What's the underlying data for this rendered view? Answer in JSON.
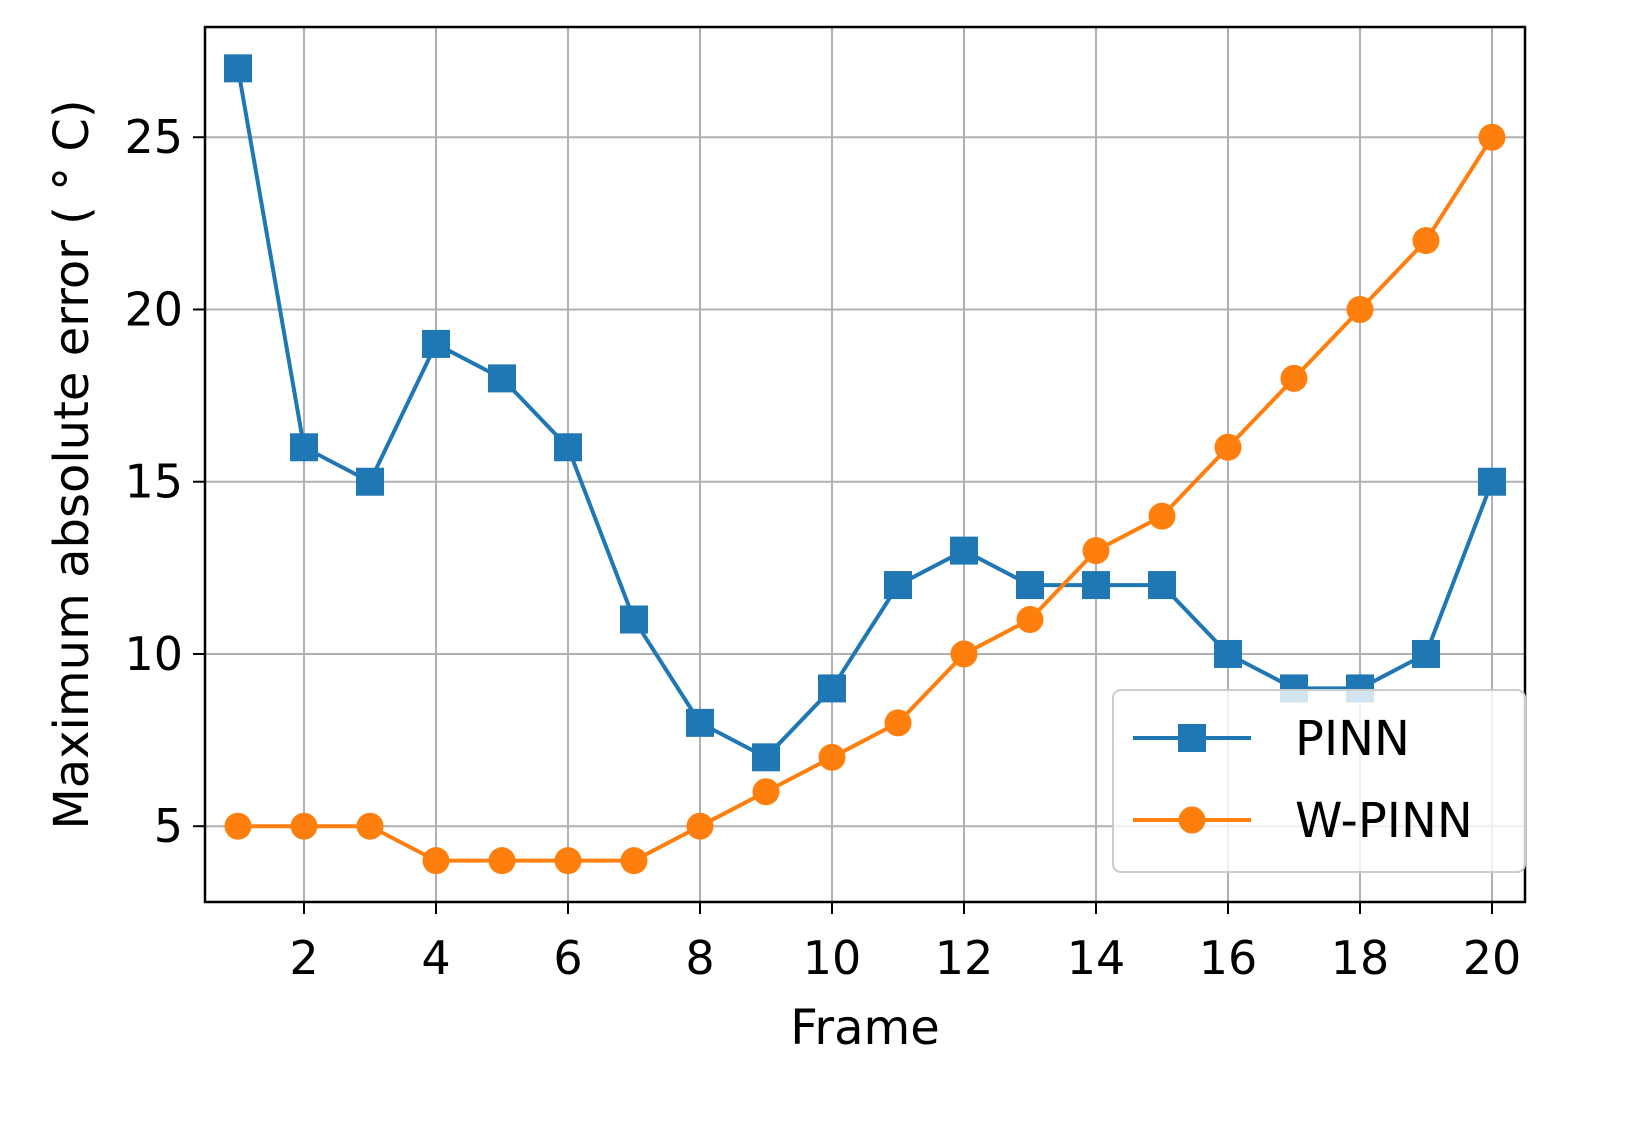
{
  "chart_data": {
    "type": "line",
    "xlabel": "Frame",
    "ylabel": "Maximum absolute error ($^\\circ$C)",
    "ylabel_display": "Maximum absolute error ( ° C)",
    "x": [
      1,
      2,
      3,
      4,
      5,
      6,
      7,
      8,
      9,
      10,
      11,
      12,
      13,
      14,
      15,
      16,
      17,
      18,
      19,
      20
    ],
    "xlim": [
      0.5,
      20.5
    ],
    "ylim": [
      2.8,
      28.2
    ],
    "xticks": [
      2,
      4,
      6,
      8,
      10,
      12,
      14,
      16,
      18,
      20
    ],
    "yticks": [
      5,
      10,
      15,
      20,
      25
    ],
    "grid": true,
    "legend_position": "lower-right",
    "series": [
      {
        "name": "PINN",
        "marker": "square",
        "color": "#1f77b4",
        "values": [
          27,
          16,
          15,
          19,
          18,
          16,
          11,
          8,
          7,
          9,
          12,
          13,
          12,
          12,
          12,
          10,
          9,
          9,
          10,
          15
        ]
      },
      {
        "name": "W-PINN",
        "marker": "circle",
        "color": "#ff7f0e",
        "values": [
          5,
          5,
          5,
          4,
          4,
          4,
          4,
          5,
          6,
          7,
          8,
          10,
          11,
          13,
          14,
          16,
          18,
          20,
          22,
          25
        ]
      }
    ]
  }
}
